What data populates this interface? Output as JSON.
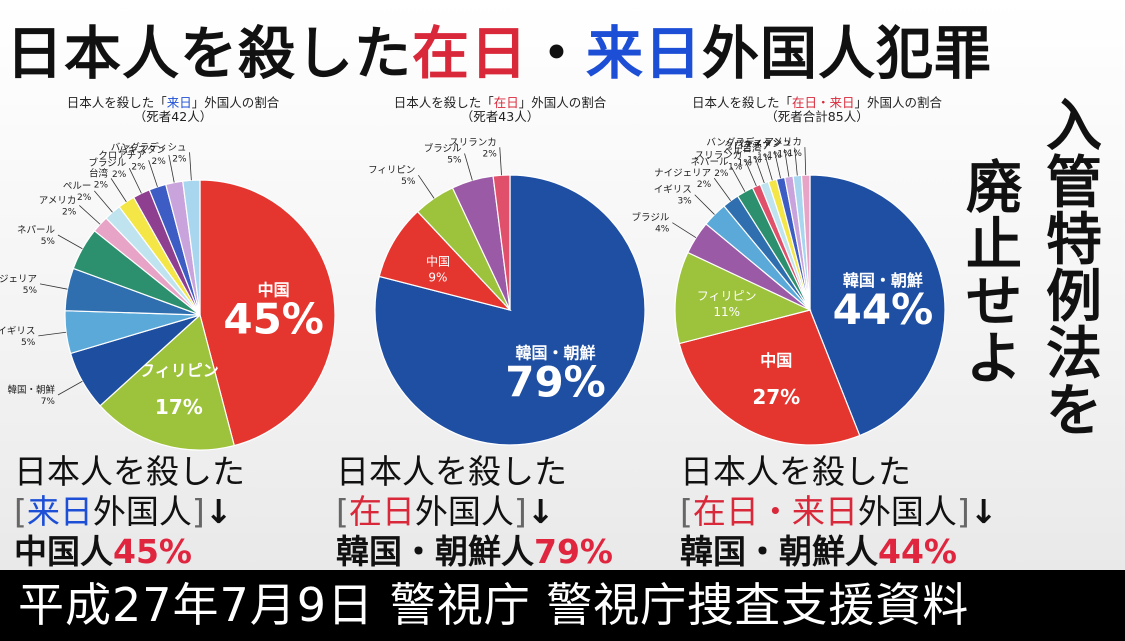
{
  "title": {
    "part1": "日本人を殺した",
    "part2": "在日",
    "part3": "・",
    "part4": "来日",
    "part5": "外国人犯罪"
  },
  "vertical_right": [
    "入",
    "管",
    "特",
    "例",
    "法",
    "を"
  ],
  "vertical_left": [
    "廃",
    "止",
    "せ",
    "よ"
  ],
  "chart_data": [
    {
      "type": "pie",
      "title_pre": "日本人を殺した「",
      "title_key": "来日",
      "title_post": "」外国人の割合",
      "subtitle": "（死者42人）",
      "slices": [
        {
          "label": "中国",
          "value": 45,
          "value_text": "45%",
          "color": "#e5352f"
        },
        {
          "label": "フィリピン",
          "value": 17,
          "value_text": "17%",
          "color": "#9dc23b"
        },
        {
          "label": "韓国・朝鮮",
          "value": 7,
          "value_text": "7%",
          "color": "#1d4ea0"
        },
        {
          "label": "イギリス",
          "value": 5,
          "value_text": "5%",
          "color": "#5aa9d8"
        },
        {
          "label": "ナイジェリア",
          "value": 5,
          "value_text": "5%",
          "color": "#2f6fb0"
        },
        {
          "label": "ネパール",
          "value": 5,
          "value_text": "5%",
          "color": "#2c8f6e"
        },
        {
          "label": "アメリカ",
          "value": 2,
          "value_text": "2%",
          "color": "#e8a4c6"
        },
        {
          "label": "ペルー",
          "value": 2,
          "value_text": "2%",
          "color": "#bfe3ef"
        },
        {
          "label": "台湾",
          "value": 2,
          "value_text": "2%",
          "color": "#f3e646"
        },
        {
          "label": "ブラジル",
          "value": 2,
          "value_text": "2%",
          "color": "#8f3f8f"
        },
        {
          "label": "クロアチア",
          "value": 2,
          "value_text": "2%",
          "color": "#3d5cc4"
        },
        {
          "label": "パキスタン",
          "value": 2,
          "value_text": "2%",
          "color": "#c9a3dc"
        },
        {
          "label": "バングラディシュ",
          "value": 2,
          "value_text": "2%",
          "color": "#a9d6ef"
        }
      ]
    },
    {
      "type": "pie",
      "title_pre": "日本人を殺した「",
      "title_key": "在日",
      "title_post": "」外国人の割合",
      "subtitle": "（死者43人）",
      "slices": [
        {
          "label": "韓国・朝鮮",
          "value": 79,
          "value_text": "79%",
          "color": "#1f4fa3"
        },
        {
          "label": "中国",
          "value": 9,
          "value_text": "9%",
          "color": "#e5352f"
        },
        {
          "label": "フィリピン",
          "value": 5,
          "value_text": "5%",
          "color": "#9dc23b"
        },
        {
          "label": "ブラジル",
          "value": 5,
          "value_text": "5%",
          "color": "#9b5aa6"
        },
        {
          "label": "スリランカ",
          "value": 2,
          "value_text": "2%",
          "color": "#e0506a"
        }
      ]
    },
    {
      "type": "pie",
      "title_pre": "日本人を殺した「",
      "title_key": "在日・来日",
      "title_post": "」外国人の割合",
      "subtitle": "（死者合計85人）",
      "slices": [
        {
          "label": "韓国・朝鮮",
          "value": 44,
          "value_text": "44%",
          "color": "#1f4fa3"
        },
        {
          "label": "中国",
          "value": 27,
          "value_text": "27%",
          "color": "#e5352f"
        },
        {
          "label": "フィリピン",
          "value": 11,
          "value_text": "11%",
          "color": "#9dc23b"
        },
        {
          "label": "ブラジル",
          "value": 4,
          "value_text": "4%",
          "color": "#9b5aa6"
        },
        {
          "label": "イギリス",
          "value": 3,
          "value_text": "3%",
          "color": "#5aa9d8"
        },
        {
          "label": "ナイジェリア",
          "value": 2,
          "value_text": "2%",
          "color": "#2f6fb0"
        },
        {
          "label": "ネパール",
          "value": 2,
          "value_text": "2%",
          "color": "#2c8f6e"
        },
        {
          "label": "スリランカ",
          "value": 1,
          "value_text": "1%",
          "color": "#e0506a"
        },
        {
          "label": "ペルー",
          "value": 1,
          "value_text": "1%",
          "color": "#bfe3ef"
        },
        {
          "label": "台湾",
          "value": 1,
          "value_text": "1%",
          "color": "#f3e646"
        },
        {
          "label": "クロアチア",
          "value": 1,
          "value_text": "1%",
          "color": "#3d5cc4"
        },
        {
          "label": "パキスタン",
          "value": 1,
          "value_text": "1%",
          "color": "#c9a3dc"
        },
        {
          "label": "バングラディッシュ",
          "value": 1,
          "value_text": "1%",
          "color": "#a9d6ef"
        },
        {
          "label": "アメリカ",
          "value": 1,
          "value_text": "1%",
          "color": "#e8a4c6"
        }
      ]
    }
  ],
  "captions": [
    {
      "line1": "日本人を殺した",
      "bracket_open": "[",
      "key": "来日",
      "key_rest": "外国人",
      "bracket_close": "]",
      "arrow": "↓",
      "nation": "中国人",
      "pct": "45%"
    },
    {
      "line1": "日本人を殺した",
      "bracket_open": "[",
      "key": "在日",
      "key_rest": "外国人",
      "bracket_close": "]",
      "arrow": "↓",
      "nation": "韓国・朝鮮人",
      "pct": "79%"
    },
    {
      "line1": "日本人を殺した",
      "bracket_open": "[",
      "key": "在日・来日",
      "key_rest": "外国人",
      "bracket_close": "]",
      "arrow": "↓",
      "nation": "韓国・朝鮮人",
      "pct": "44%"
    }
  ],
  "footer": "平成27年7月9日 警視庁 警視庁捜査支援資料"
}
